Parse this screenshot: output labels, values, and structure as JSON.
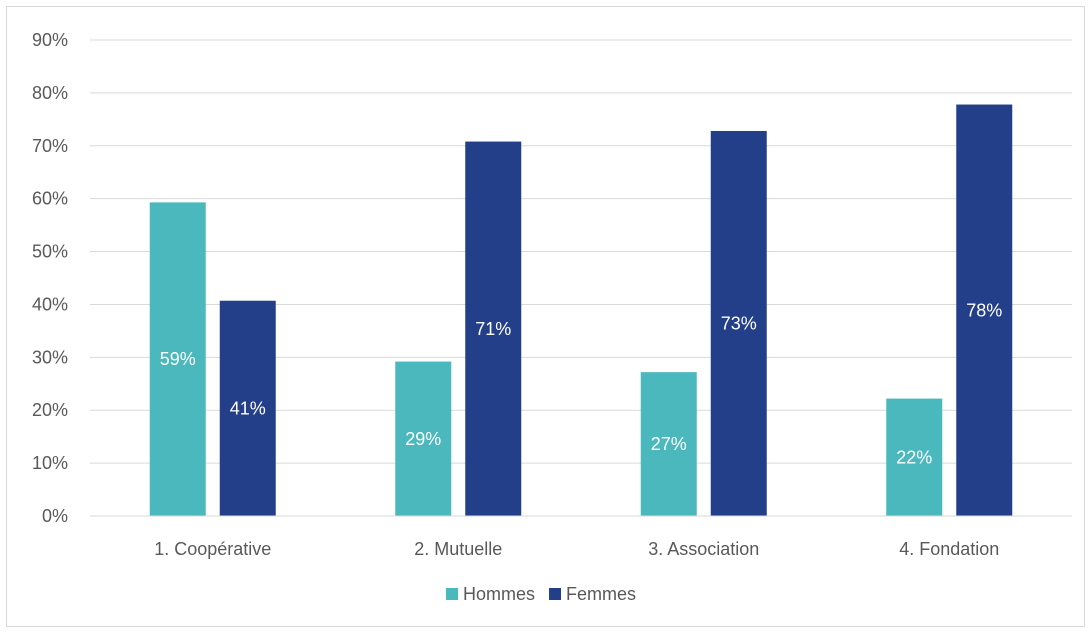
{
  "chart_data": {
    "type": "bar",
    "categories": [
      "1. Coopérative",
      "2. Mutuelle",
      "3. Association",
      "4. Fondation"
    ],
    "series": [
      {
        "name": "Hommes",
        "values": [
          59.3,
          29.2,
          27.2,
          22.2
        ],
        "labels": [
          "59%",
          "29%",
          "27%",
          "22%"
        ],
        "color": "#4bb8bd"
      },
      {
        "name": "Femmes",
        "values": [
          40.7,
          70.8,
          72.8,
          77.8
        ],
        "labels": [
          "41%",
          "71%",
          "73%",
          "78%"
        ],
        "color": "#243f8a"
      }
    ],
    "ylim": [
      0,
      90
    ],
    "yticks": [
      "0%",
      "10%",
      "20%",
      "30%",
      "40%",
      "50%",
      "60%",
      "70%",
      "80%",
      "90%"
    ],
    "grid": true,
    "legend_position": "bottom",
    "gridline_color": "#d9d9d9"
  }
}
